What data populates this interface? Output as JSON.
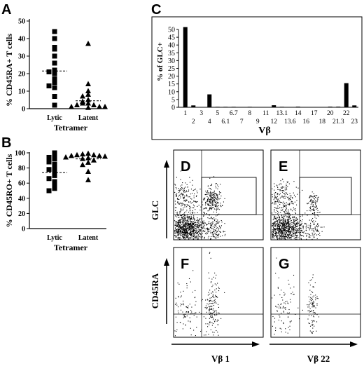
{
  "panel_letters": {
    "a": "A",
    "b": "B",
    "c": "C",
    "d": "D",
    "e": "E",
    "f": "F",
    "g": "G"
  },
  "chart_data": [
    {
      "panel": "A",
      "type": "scatter",
      "ylabel": "% CD45RA+ T cells",
      "xlabel": "Tetramer",
      "categories": [
        "Lytic",
        "Latent"
      ],
      "ylim": [
        0,
        50
      ],
      "yticks": [
        "0",
        "10",
        "20",
        "30",
        "40",
        "50"
      ],
      "series": [
        {
          "category": "Lytic",
          "marker": "square",
          "values": [
            44,
            40,
            35,
            34,
            30,
            26,
            22,
            21,
            20,
            17,
            15,
            13,
            12,
            7,
            2
          ],
          "mean": 21.5
        },
        {
          "category": "Latent",
          "marker": "triangle",
          "values": [
            37,
            14,
            10,
            8,
            7,
            5,
            4,
            3,
            3,
            2,
            2,
            1,
            1,
            1,
            0.5
          ],
          "mean": 4.5
        }
      ]
    },
    {
      "panel": "B",
      "type": "scatter",
      "ylabel": "% CD45RO+ T cells",
      "xlabel": "Tetramer",
      "categories": [
        "Lytic",
        "Latent"
      ],
      "ylim": [
        0,
        100
      ],
      "yticks": [
        "0",
        "20",
        "40",
        "60",
        "80",
        "100"
      ],
      "series": [
        {
          "category": "Lytic",
          "marker": "square",
          "values": [
            100,
            98,
            94,
            92,
            88,
            85,
            81,
            78,
            75,
            70,
            66,
            62,
            58,
            53,
            50
          ],
          "mean": 74
        },
        {
          "category": "Latent",
          "marker": "triangle",
          "values": [
            99,
            98,
            97,
            97,
            96,
            96,
            95,
            94,
            93,
            92,
            90,
            87,
            84,
            75,
            64
          ],
          "mean": 92
        }
      ]
    },
    {
      "panel": "C",
      "type": "bar",
      "ylabel": "% of GLC+",
      "xlabel": "Vβ",
      "ylim": [
        0,
        50
      ],
      "yticks": [
        "0",
        "5",
        "10",
        "15",
        "20",
        "25",
        "30",
        "35",
        "40",
        "45",
        "50"
      ],
      "categories": [
        "1",
        "2",
        "3",
        "4",
        "5",
        "6.1",
        "6.7",
        "7",
        "8",
        "9",
        "11",
        "12",
        "13.1",
        "13.6",
        "14",
        "16",
        "17",
        "18",
        "20",
        "21.3",
        "22",
        "23"
      ],
      "values": [
        51.5,
        1.2,
        0,
        8.3,
        0.3,
        0.3,
        0.3,
        0,
        0.3,
        0,
        0,
        1.3,
        0.3,
        0,
        0.4,
        0,
        0,
        0,
        0.4,
        0.4,
        15.5,
        1.2
      ]
    }
  ],
  "flow": {
    "y_axis_top": "GLC",
    "y_axis_bottom": "CD45RA",
    "x_axis_left": "Vβ 1",
    "x_axis_right": "Vβ 22"
  }
}
